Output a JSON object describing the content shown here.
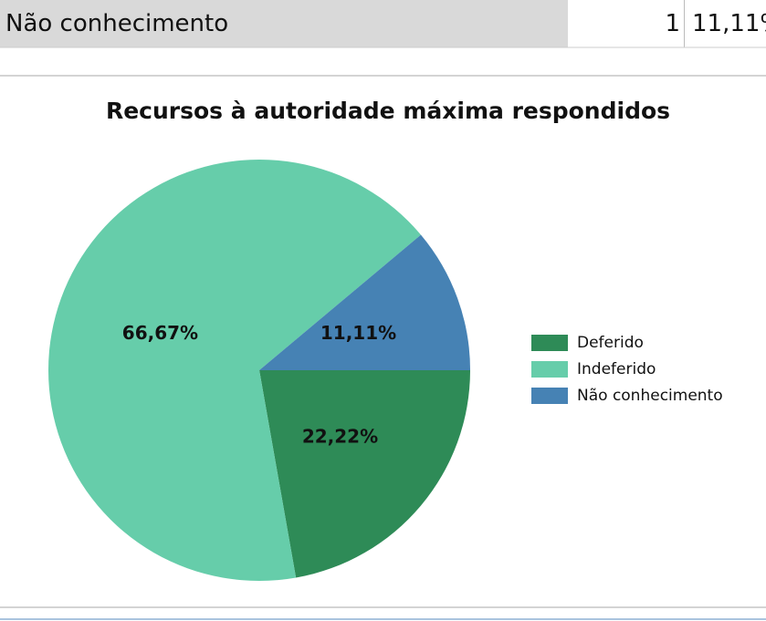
{
  "table": {
    "rows": [
      [
        "Não conhecimento",
        1,
        "11,11%"
      ]
    ]
  },
  "chart_data": {
    "type": "pie",
    "title": "Recursos à autoridade máxima respondidos",
    "categories": [
      "Deferido",
      "Indeferido",
      "Não conhecimento"
    ],
    "values": [
      22.22,
      66.67,
      11.11
    ],
    "value_labels": [
      "22,22%",
      "66,67%",
      "11,11%"
    ],
    "colors": [
      "#2e8b57",
      "#66cdaa",
      "#4682b4"
    ],
    "legend": "right"
  }
}
